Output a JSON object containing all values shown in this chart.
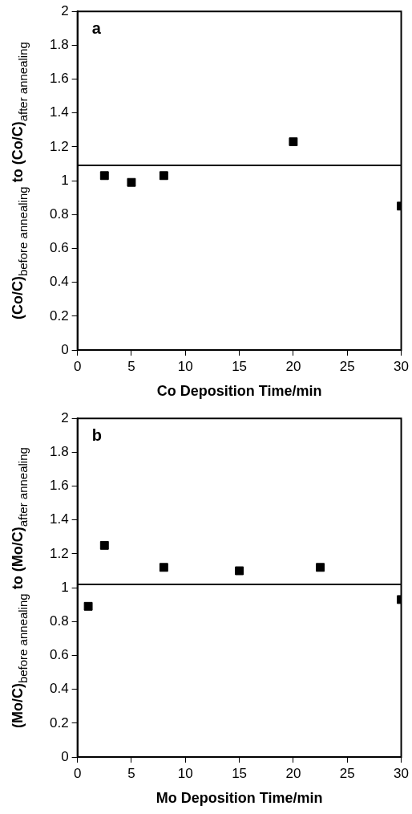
{
  "chart_data": [
    {
      "type": "scatter",
      "xlabel": "Co Deposition Time/min",
      "ylabel": "(Co/C)$_{before annealing}$ to (Co/C)$_{after annealing}$",
      "annotations": [
        "a"
      ],
      "x": [
        2.5,
        5,
        8,
        20,
        30
      ],
      "values": [
        1.03,
        0.99,
        1.03,
        1.23,
        0.85
      ],
      "color": "#000000",
      "marker": "square",
      "xlim": [
        0,
        30
      ],
      "xticks": [
        0,
        5,
        10,
        15,
        20,
        25,
        30
      ],
      "ylim": [
        0,
        2
      ],
      "yticks": [
        0,
        0.2,
        0.4,
        0.6,
        0.8,
        1,
        1.2,
        1.4,
        1.6,
        1.8,
        2
      ],
      "ref_lines": [
        {
          "axis": "y",
          "value": 1.09,
          "color": "#000000"
        }
      ],
      "grid": false,
      "legend": false
    },
    {
      "type": "scatter",
      "xlabel": "Mo Deposition Time/min",
      "ylabel": "(Mo/C)$_{before annealing}$ to (Mo/C)$_{after annealing}$",
      "annotations": [
        "b"
      ],
      "x": [
        1,
        2.5,
        8,
        15,
        22.5,
        30
      ],
      "values": [
        0.89,
        1.25,
        1.12,
        1.1,
        1.12,
        0.93
      ],
      "color": "#000000",
      "marker": "square",
      "xlim": [
        0,
        30
      ],
      "xticks": [
        0,
        5,
        10,
        15,
        20,
        25,
        30
      ],
      "ylim": [
        0,
        2
      ],
      "yticks": [
        0,
        0.2,
        0.4,
        0.6,
        0.8,
        1,
        1.2,
        1.4,
        1.6,
        1.8,
        2
      ],
      "ref_lines": [
        {
          "axis": "y",
          "value": 1.02,
          "color": "#000000"
        }
      ],
      "grid": false,
      "legend": false
    }
  ]
}
